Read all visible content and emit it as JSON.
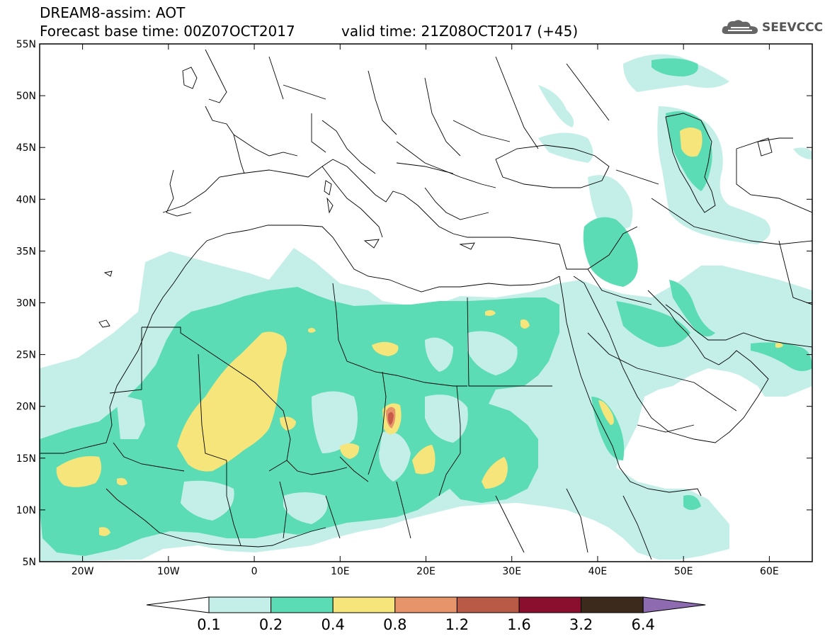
{
  "title": {
    "line1": "DREAM8-assim: AOT",
    "line2": "Forecast base time: 00Z07OCT2017",
    "valid": "valid time: 21Z08OCT2017 (+45)"
  },
  "logo": {
    "text": "SEEVCCC",
    "icon": "cloud-icon"
  },
  "map": {
    "lon_range": [
      -25,
      65
    ],
    "lat_range": [
      5,
      55
    ],
    "lat_ticks": [
      "55N",
      "50N",
      "45N",
      "40N",
      "35N",
      "30N",
      "25N",
      "20N",
      "15N",
      "10N",
      "5N"
    ],
    "lon_ticks": [
      "20W",
      "10W",
      "0",
      "10E",
      "20E",
      "30E",
      "40E",
      "50E",
      "60E"
    ],
    "lat_values": [
      55,
      50,
      45,
      40,
      35,
      30,
      25,
      20,
      15,
      10,
      5
    ],
    "lon_values": [
      -20,
      -10,
      0,
      10,
      20,
      30,
      40,
      50,
      60
    ]
  },
  "colorbar": {
    "levels": [
      "0.1",
      "0.2",
      "0.4",
      "0.8",
      "1.2",
      "1.6",
      "3.2",
      "6.4"
    ],
    "colors": [
      "#ffffff",
      "#c4efe8",
      "#5cdcb4",
      "#f5e57a",
      "#e8946a",
      "#b85a46",
      "#8a0e2e",
      "#3c2a1c",
      "#8e6ab0"
    ]
  },
  "field_colors": {
    "light": "#c4efe8",
    "medium": "#5cdcb4",
    "yellow": "#f5e57a",
    "orange": "#e8946a",
    "red": "#c85a4a"
  }
}
